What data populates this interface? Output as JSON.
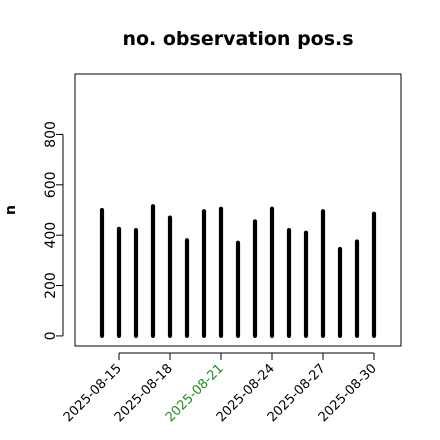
{
  "chart_data": {
    "type": "bar",
    "title": "no. observation pos.s",
    "xlabel": "",
    "ylabel": "n",
    "ylim": [
      -40,
      1040
    ],
    "yticks": [
      0,
      200,
      400,
      600,
      800
    ],
    "ytick_labels": [
      "0",
      "200",
      "400",
      "600",
      "800"
    ],
    "categories": [
      "2025-08-14",
      "2025-08-15",
      "2025-08-16",
      "2025-08-17",
      "2025-08-18",
      "2025-08-19",
      "2025-08-20",
      "2025-08-21",
      "2025-08-22",
      "2025-08-23",
      "2025-08-24",
      "2025-08-25",
      "2025-08-26",
      "2025-08-27",
      "2025-08-28",
      "2025-08-29",
      "2025-08-30"
    ],
    "values": [
      500,
      425,
      420,
      515,
      470,
      380,
      495,
      505,
      370,
      455,
      505,
      420,
      410,
      495,
      345,
      375,
      485
    ],
    "xtick_labels": [
      "2025-08-15",
      "2025-08-18",
      "2025-08-21",
      "2025-08-24",
      "2025-08-27",
      "2025-08-30"
    ],
    "xtick_colors": [
      "#000000",
      "#000000",
      "#228B22",
      "#000000",
      "#000000",
      "#000000"
    ],
    "bar_color": "#000000",
    "grid": false
  }
}
